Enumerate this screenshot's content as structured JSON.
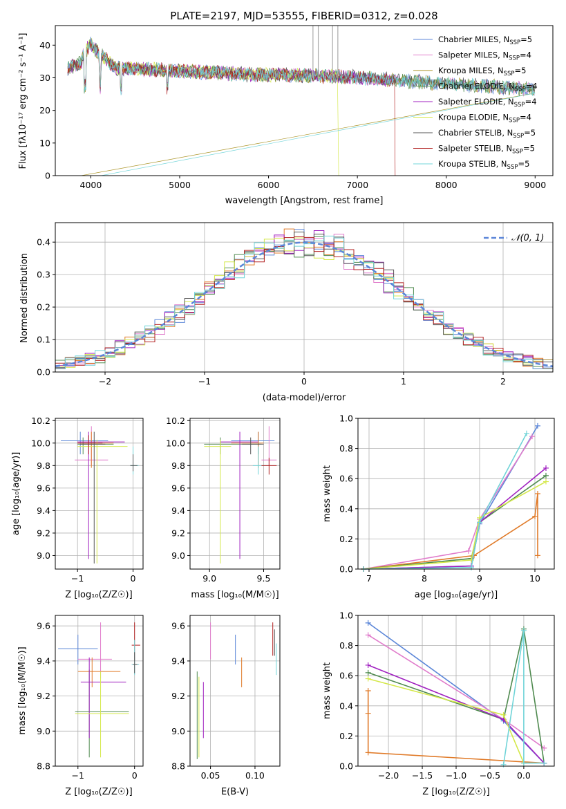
{
  "figure": {
    "title": "PLATE=2197, MJD=53555, FIBERID=0312, z=0.028"
  },
  "colors": {
    "Chabrier MILES": "#5b86d8",
    "Salpeter MILES": "#e07ccb",
    "Kroupa MILES": "#a89020",
    "Chabrier ELODIE": "#4f8a4f",
    "Salpeter ELODIE": "#a020c0",
    "Kroupa ELODIE": "#d4e84a",
    "Chabrier STELIB": "#555555",
    "Salpeter STELIB": "#b22020",
    "Kroupa STELIB": "#70d4d8",
    "normal": "#5b86d8",
    "orange": "#e07a28"
  },
  "panels": {
    "spectrum": {
      "ylabel": "Flux [fλ10⁻¹⁷ erg cm⁻² s⁻¹ A⁻¹]",
      "xlabel": "wavelength [Angstrom, rest frame]",
      "xticks": [
        "4000",
        "5000",
        "6000",
        "7000",
        "8000",
        "9000"
      ],
      "yticks": [
        "0",
        "10",
        "20",
        "30",
        "40"
      ],
      "legend": [
        {
          "model": "Chabrier MILES",
          "n": "5"
        },
        {
          "model": "Salpeter MILES",
          "n": "4"
        },
        {
          "model": "Kroupa MILES",
          "n": "5"
        },
        {
          "model": "Chabrier ELODIE",
          "n": "4"
        },
        {
          "model": "Salpeter ELODIE",
          "n": "4"
        },
        {
          "model": "Kroupa ELODIE",
          "n": "4"
        },
        {
          "model": "Chabrier STELIB",
          "n": "5"
        },
        {
          "model": "Salpeter STELIB",
          "n": "5"
        },
        {
          "model": "Kroupa STELIB",
          "n": "5"
        }
      ]
    },
    "residuals": {
      "ylabel": "Normed distribution",
      "xlabel": "(data-model)/error",
      "xticks": [
        "−2",
        "−1",
        "0",
        "1",
        "2"
      ],
      "yticks": [
        "0.0",
        "0.1",
        "0.2",
        "0.3",
        "0.4"
      ],
      "legend": "𝒩(0, 1)"
    },
    "age_vs_Z": {
      "ylabel": "age  [log₁₀(age/yr)]",
      "xlabel": "Z [log₁₀(Z/Z☉)]",
      "xticks": [
        "−1",
        "0"
      ],
      "yticks": [
        "9.0",
        "9.2",
        "9.4",
        "9.6",
        "9.8",
        "10.0",
        "10.2"
      ]
    },
    "age_vs_mass": {
      "xlabel": "mass [log₁₀(M/M☉)]",
      "xticks": [
        "9.0",
        "9.5"
      ],
      "yticks": [
        "9.0",
        "9.2",
        "9.4",
        "9.6",
        "9.8",
        "10.0",
        "10.2"
      ]
    },
    "weight_vs_age": {
      "ylabel": "mass weight",
      "xlabel": "age  [log₁₀(age/yr)]",
      "xticks": [
        "7",
        "8",
        "9",
        "10"
      ],
      "yticks": [
        "0.0",
        "0.2",
        "0.4",
        "0.6",
        "0.8",
        "1.0"
      ]
    },
    "mass_vs_Z": {
      "ylabel": "mass [log₁₀(M/M☉)]",
      "xlabel": "Z [log₁₀(Z/Z☉)]",
      "xticks": [
        "−1",
        "0"
      ],
      "yticks": [
        "8.8",
        "9.0",
        "9.2",
        "9.4",
        "9.6"
      ]
    },
    "mass_vs_ebv": {
      "xlabel": "E(B-V)",
      "xticks": [
        "0.05",
        "0.10"
      ],
      "yticks": [
        "8.8",
        "9.0",
        "9.2",
        "9.4",
        "9.6"
      ]
    },
    "weight_vs_Z": {
      "ylabel": "mass weight",
      "xlabel": "Z [log₁₀(Z/Z☉)]",
      "xticks": [
        "−2.0",
        "−1.5",
        "−1.0",
        "−0.5",
        "0.0"
      ],
      "yticks": [
        "0.0",
        "0.2",
        "0.4",
        "0.6",
        "0.8",
        "1.0"
      ]
    }
  },
  "chart_data": [
    {
      "type": "line",
      "title": "PLATE=2197, MJD=53555, FIBERID=0312, z=0.028",
      "xlabel": "wavelength [Angstrom, rest frame]",
      "ylabel": "Flux [fλ10⁻¹⁷ erg cm⁻² s⁻¹ A⁻¹]",
      "xlim": [
        3600,
        9200
      ],
      "ylim": [
        0,
        46
      ],
      "series": [
        {
          "name": "Chabrier MILES",
          "x": [
            3740,
            3900,
            4000,
            4200,
            4500,
            5000,
            5500,
            6000,
            6500,
            6800,
            7000,
            7400
          ],
          "values": [
            33,
            35,
            40,
            33,
            33,
            31,
            30,
            31,
            30,
            32,
            30,
            29
          ]
        },
        {
          "name": "Kroupa STELIB",
          "x": [
            3740,
            3900,
            4000,
            4200,
            4500,
            5000,
            5500,
            6000,
            6500,
            7000,
            7500,
            8000,
            8500,
            9000
          ],
          "values": [
            33,
            35,
            42,
            34,
            33,
            31,
            30,
            31,
            30,
            29,
            29,
            27,
            26,
            26
          ]
        }
      ]
    },
    {
      "type": "line",
      "xlabel": "(data-model)/error",
      "ylabel": "Normed distribution",
      "xlim": [
        -2.5,
        2.5
      ],
      "ylim": [
        0,
        0.46
      ],
      "series": [
        {
          "name": "𝒩(0, 1)",
          "x": [
            -2.5,
            -2.0,
            -1.5,
            -1.0,
            -0.5,
            0.0,
            0.5,
            1.0,
            1.5,
            2.0,
            2.5
          ],
          "values": [
            0.0175,
            0.054,
            0.1295,
            0.242,
            0.352,
            0.399,
            0.352,
            0.242,
            0.1295,
            0.054,
            0.0175
          ]
        }
      ]
    },
    {
      "type": "scatter",
      "xlabel": "age  [log₁₀(age/yr)]",
      "ylabel": "mass weight",
      "xlim": [
        6.8,
        10.35
      ],
      "ylim": [
        0,
        1
      ],
      "series": [
        {
          "name": "Chabrier MILES",
          "x": [
            6.9,
            8.85,
            9.0,
            10.05
          ],
          "values": [
            0.0,
            0.02,
            0.3,
            0.95
          ]
        },
        {
          "name": "Salpeter MILES",
          "x": [
            6.9,
            8.8,
            9.0,
            9.95
          ],
          "values": [
            0.0,
            0.12,
            0.33,
            0.88
          ]
        },
        {
          "name": "Kroupa MILES",
          "x": [
            6.9,
            8.9,
            10.0,
            10.05,
            10.05
          ],
          "values": [
            0.0,
            0.09,
            0.35,
            0.5,
            0.09
          ]
        },
        {
          "name": "Chabrier ELODIE",
          "x": [
            6.9,
            8.85,
            9.0,
            10.2
          ],
          "values": [
            0.0,
            0.07,
            0.31,
            0.62
          ]
        },
        {
          "name": "Salpeter ELODIE",
          "x": [
            6.9,
            8.85,
            9.0,
            10.2
          ],
          "values": [
            0.0,
            0.02,
            0.31,
            0.67
          ]
        },
        {
          "name": "Kroupa ELODIE",
          "x": [
            6.9,
            8.85,
            9.0,
            10.2
          ],
          "values": [
            0.0,
            0.06,
            0.34,
            0.58
          ]
        },
        {
          "name": "Kroupa STELIB",
          "x": [
            6.9,
            8.85,
            9.0,
            9.85
          ],
          "values": [
            0.0,
            0.01,
            0.31,
            0.9
          ]
        }
      ]
    },
    {
      "type": "scatter",
      "xlabel": "Z [log₁₀(Z/Z☉)]",
      "ylabel": "mass weight",
      "xlim": [
        -2.45,
        0.45
      ],
      "ylim": [
        0,
        1
      ],
      "series": [
        {
          "name": "Chabrier MILES",
          "x": [
            -2.3,
            -0.3,
            0.3
          ],
          "values": [
            0.95,
            0.3,
            0.02
          ]
        },
        {
          "name": "Salpeter MILES",
          "x": [
            -2.3,
            -0.3,
            0.3
          ],
          "values": [
            0.87,
            0.31,
            0.12
          ]
        },
        {
          "name": "Kroupa MILES",
          "x": [
            -2.3,
            -2.3,
            -2.3,
            0.3
          ],
          "values": [
            0.5,
            0.35,
            0.09,
            0.02
          ]
        },
        {
          "name": "Chabrier ELODIE",
          "x": [
            -2.3,
            -0.3,
            0.0,
            0.3
          ],
          "values": [
            0.62,
            0.31,
            0.91,
            0.02
          ]
        },
        {
          "name": "Salpeter ELODIE",
          "x": [
            -2.3,
            -0.3,
            0.3
          ],
          "values": [
            0.67,
            0.31,
            0.02
          ]
        },
        {
          "name": "Kroupa ELODIE",
          "x": [
            -2.3,
            -0.3,
            0.0
          ],
          "values": [
            0.58,
            0.34,
            0.02
          ]
        },
        {
          "name": "Kroupa STELIB",
          "x": [
            -0.3,
            0.0,
            0.0,
            0.3
          ],
          "values": [
            0.01,
            0.9,
            0.02,
            0.02
          ]
        }
      ]
    }
  ]
}
